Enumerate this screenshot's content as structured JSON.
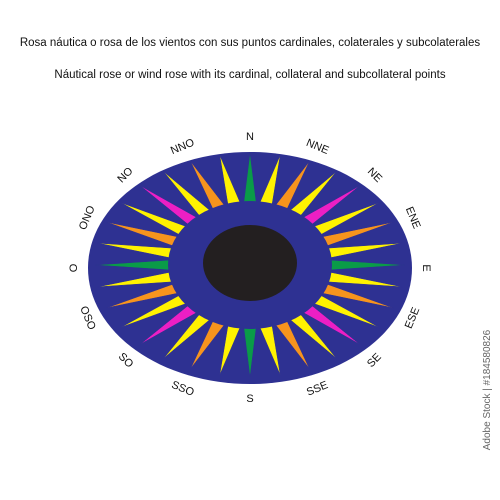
{
  "header": {
    "title_es": "Rosa náutica o rosa de los vientos con sus puntos cardinales, colaterales y subcolaterales",
    "title_en": "Náutical rose or wind rose with its cardinal, collateral and subcollateral points"
  },
  "rose": {
    "points": [
      "N",
      "NNE",
      "NE",
      "ENE",
      "E",
      "ESE",
      "SE",
      "SSE",
      "S",
      "SSO",
      "SO",
      "OSO",
      "O",
      "ONO",
      "NO",
      "NNO"
    ]
  },
  "watermark": "Adobe Stock | #184580826"
}
